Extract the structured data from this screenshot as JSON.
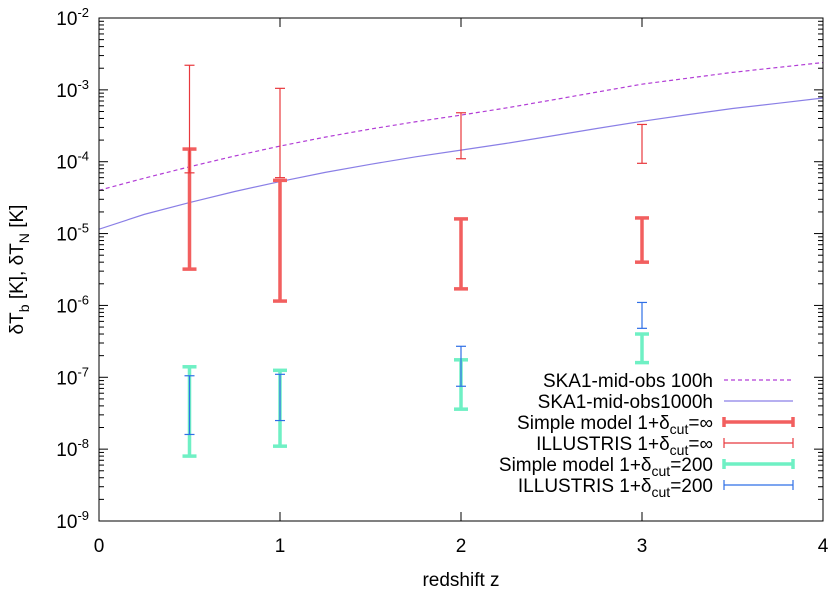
{
  "chart_data": {
    "type": "errorbar",
    "xlabel": "redshift z",
    "ylabel": {
      "parts": [
        {
          "text": "δT",
          "sub": "b"
        },
        {
          "text": " [K], δT",
          "sub": "N"
        },
        {
          "text": " [K]",
          "sub": ""
        }
      ]
    },
    "xlim": [
      0,
      4
    ],
    "ylim_log10": [
      -9,
      -2
    ],
    "x_ticks": [
      {
        "value": 0,
        "label": "0"
      },
      {
        "value": 1,
        "label": "1"
      },
      {
        "value": 2,
        "label": "2"
      },
      {
        "value": 3,
        "label": "3"
      },
      {
        "value": 4,
        "label": "4"
      }
    ],
    "y_ticks": [
      {
        "exp": -2,
        "base": "10",
        "sup": "-2"
      },
      {
        "exp": -3,
        "base": "10",
        "sup": "-3"
      },
      {
        "exp": -4,
        "base": "10",
        "sup": "-4"
      },
      {
        "exp": -5,
        "base": "10",
        "sup": "-5"
      },
      {
        "exp": -6,
        "base": "10",
        "sup": "-6"
      },
      {
        "exp": -7,
        "base": "10",
        "sup": "-7"
      },
      {
        "exp": -8,
        "base": "10",
        "sup": "-8"
      },
      {
        "exp": -9,
        "base": "10",
        "sup": "-9"
      }
    ],
    "legend_position": "bottom-right",
    "series": [
      {
        "name": "SKA1-mid-obs 100h",
        "label_parts": [
          {
            "text": "SKA1-mid-obs 100h"
          }
        ],
        "kind": "curve",
        "color": "#b23dd6",
        "dashed": true,
        "stroke": 1.2,
        "x": [
          0,
          0.25,
          0.5,
          0.75,
          1,
          1.25,
          1.5,
          1.75,
          2,
          2.25,
          2.5,
          2.75,
          3,
          3.25,
          3.5,
          3.75,
          4
        ],
        "y": [
          4e-05,
          5.9e-05,
          8.5e-05,
          0.00012,
          0.000165,
          0.00022,
          0.000285,
          0.00036,
          0.000445,
          0.00056,
          0.00072,
          0.00093,
          0.0012,
          0.00145,
          0.00175,
          0.00205,
          0.0024
        ]
      },
      {
        "name": "SKA1-mid-obs1000h",
        "label_parts": [
          {
            "text": "SKA1-mid-obs1000h"
          }
        ],
        "kind": "curve",
        "color": "#8a7fe6",
        "dashed": false,
        "stroke": 1.2,
        "x": [
          0,
          0.25,
          0.5,
          0.75,
          1,
          1.25,
          1.5,
          1.75,
          2,
          2.25,
          2.5,
          2.75,
          3,
          3.25,
          3.5,
          3.75,
          4
        ],
        "y": [
          1.15e-05,
          1.85e-05,
          2.7e-05,
          3.85e-05,
          5.3e-05,
          7.1e-05,
          9.2e-05,
          0.000117,
          0.000145,
          0.00018,
          0.000228,
          0.00029,
          0.000365,
          0.00045,
          0.00055,
          0.00065,
          0.00077
        ]
      },
      {
        "name": "Simple model 1+δcut=∞",
        "label_parts": [
          {
            "text": "Simple model 1+δ"
          },
          {
            "text": "cut",
            "sub": true
          },
          {
            "text": "=∞"
          }
        ],
        "kind": "errorbar",
        "color": "#f25f5f",
        "stroke": 3.5,
        "cap": 7,
        "x": [
          0.5,
          1,
          2,
          3
        ],
        "lower": [
          3.2e-06,
          1.15e-06,
          1.7e-06,
          4e-06
        ],
        "upper": [
          0.00015,
          5.5e-05,
          1.6e-05,
          1.65e-05
        ]
      },
      {
        "name": "ILLUSTRIS 1+δcut=∞",
        "label_parts": [
          {
            "text": "ILLUSTRIS 1+δ"
          },
          {
            "text": "cut",
            "sub": true
          },
          {
            "text": "=∞"
          }
        ],
        "kind": "errorbar",
        "color": "#e8383d",
        "stroke": 1.2,
        "cap": 5,
        "x": [
          0.5,
          1,
          2,
          3
        ],
        "lower": [
          7e-05,
          6e-05,
          0.00011,
          9.5e-05
        ],
        "upper": [
          0.0022,
          0.00105,
          0.00048,
          0.00033
        ]
      },
      {
        "name": "Simple model 1+δcut=200",
        "label_parts": [
          {
            "text": "Simple model 1+δ"
          },
          {
            "text": "cut",
            "sub": true
          },
          {
            "text": "=200"
          }
        ],
        "kind": "errorbar",
        "color": "#6ff0c4",
        "stroke": 3.5,
        "cap": 7,
        "x": [
          0.5,
          1,
          2,
          3
        ],
        "lower": [
          8e-09,
          1.1e-08,
          3.6e-08,
          1.6e-07
        ],
        "upper": [
          1.4e-07,
          1.25e-07,
          1.75e-07,
          4e-07
        ]
      },
      {
        "name": "ILLUSTRIS 1+δcut=200",
        "label_parts": [
          {
            "text": "ILLUSTRIS 1+δ"
          },
          {
            "text": "cut",
            "sub": true
          },
          {
            "text": "=200"
          }
        ],
        "kind": "errorbar",
        "color": "#2f6fe6",
        "stroke": 1.2,
        "cap": 5,
        "x": [
          0.5,
          1,
          2,
          3
        ],
        "lower": [
          1.6e-08,
          2.5e-08,
          7.5e-08,
          4.8e-07
        ],
        "upper": [
          1.05e-07,
          1.1e-07,
          2.7e-07,
          1.1e-06
        ]
      }
    ]
  }
}
